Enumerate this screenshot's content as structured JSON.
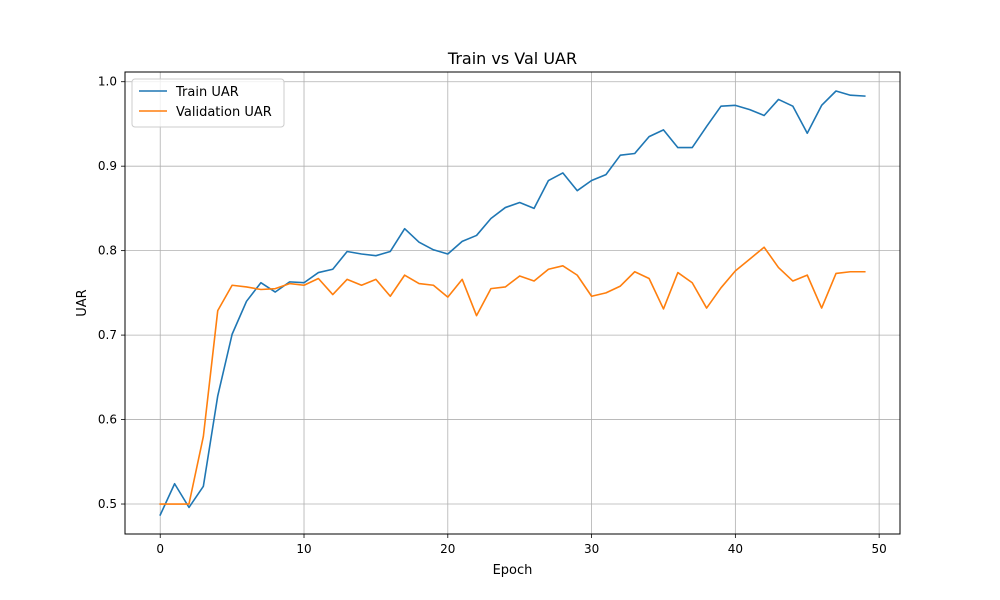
{
  "chart_data": {
    "type": "line",
    "title": "Train vs Val UAR",
    "xlabel": "Epoch",
    "ylabel": "UAR",
    "xlim": [
      -2.45,
      51.45
    ],
    "ylim": [
      0.4645,
      1.0115
    ],
    "xticks": [
      0,
      10,
      20,
      30,
      40,
      50
    ],
    "yticks": [
      0.5,
      0.6,
      0.7,
      0.8,
      0.9,
      1.0
    ],
    "xtick_labels": [
      "0",
      "10",
      "20",
      "30",
      "40",
      "50"
    ],
    "ytick_labels": [
      "0.5",
      "0.6",
      "0.7",
      "0.8",
      "0.9",
      "1.0"
    ],
    "grid": true,
    "legend_position": "top-left",
    "x": [
      0,
      1,
      2,
      3,
      4,
      5,
      6,
      7,
      8,
      9,
      10,
      11,
      12,
      13,
      14,
      15,
      16,
      17,
      18,
      19,
      20,
      21,
      22,
      23,
      24,
      25,
      26,
      27,
      28,
      29,
      30,
      31,
      32,
      33,
      34,
      35,
      36,
      37,
      38,
      39,
      40,
      41,
      42,
      43,
      44,
      45,
      46,
      47,
      48,
      49
    ],
    "series": [
      {
        "name": "Train UAR",
        "color": "#1f77b4",
        "values": [
          0.487,
          0.524,
          0.496,
          0.521,
          0.628,
          0.701,
          0.74,
          0.762,
          0.751,
          0.763,
          0.762,
          0.774,
          0.778,
          0.799,
          0.796,
          0.794,
          0.799,
          0.826,
          0.81,
          0.801,
          0.796,
          0.811,
          0.818,
          0.838,
          0.851,
          0.857,
          0.85,
          0.883,
          0.892,
          0.871,
          0.883,
          0.89,
          0.913,
          0.915,
          0.935,
          0.943,
          0.922,
          0.922,
          0.947,
          0.971,
          0.972,
          0.967,
          0.96,
          0.979,
          0.971,
          0.939,
          0.972,
          0.989,
          0.984,
          0.983
        ]
      },
      {
        "name": "Validation UAR",
        "color": "#ff7f0e",
        "values": [
          0.5,
          0.5,
          0.5,
          0.58,
          0.729,
          0.759,
          0.757,
          0.754,
          0.755,
          0.761,
          0.759,
          0.767,
          0.748,
          0.766,
          0.759,
          0.766,
          0.746,
          0.771,
          0.761,
          0.759,
          0.745,
          0.766,
          0.723,
          0.755,
          0.757,
          0.77,
          0.764,
          0.778,
          0.782,
          0.771,
          0.746,
          0.75,
          0.758,
          0.775,
          0.767,
          0.731,
          0.774,
          0.762,
          0.732,
          0.756,
          0.776,
          0.79,
          0.804,
          0.78,
          0.764,
          0.771,
          0.732,
          0.773,
          0.775,
          0.775
        ]
      }
    ]
  }
}
